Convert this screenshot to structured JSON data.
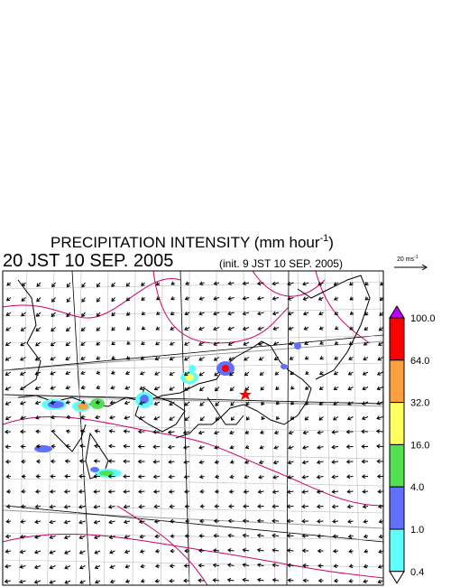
{
  "title": {
    "text": "PRECIPITATION INTENSITY (mm hour",
    "superscript": "-1",
    "close": ")"
  },
  "valid_time": "20 JST 10 SEP. 2005",
  "init_time": "(init. 9 JST 10 SEP. 2005)",
  "vector_scale": {
    "text": "20 ms",
    "superscript": "-1"
  },
  "colorbar": {
    "labels": [
      "100.0",
      "64.0",
      "32.0",
      "16.0",
      "4.0",
      "1.0",
      "0.4"
    ],
    "colors": [
      "#c000ff",
      "#ff0000",
      "#ffa040",
      "#ffff60",
      "#50e050",
      "#6070ff",
      "#60ffff",
      "#ffffff"
    ]
  }
}
